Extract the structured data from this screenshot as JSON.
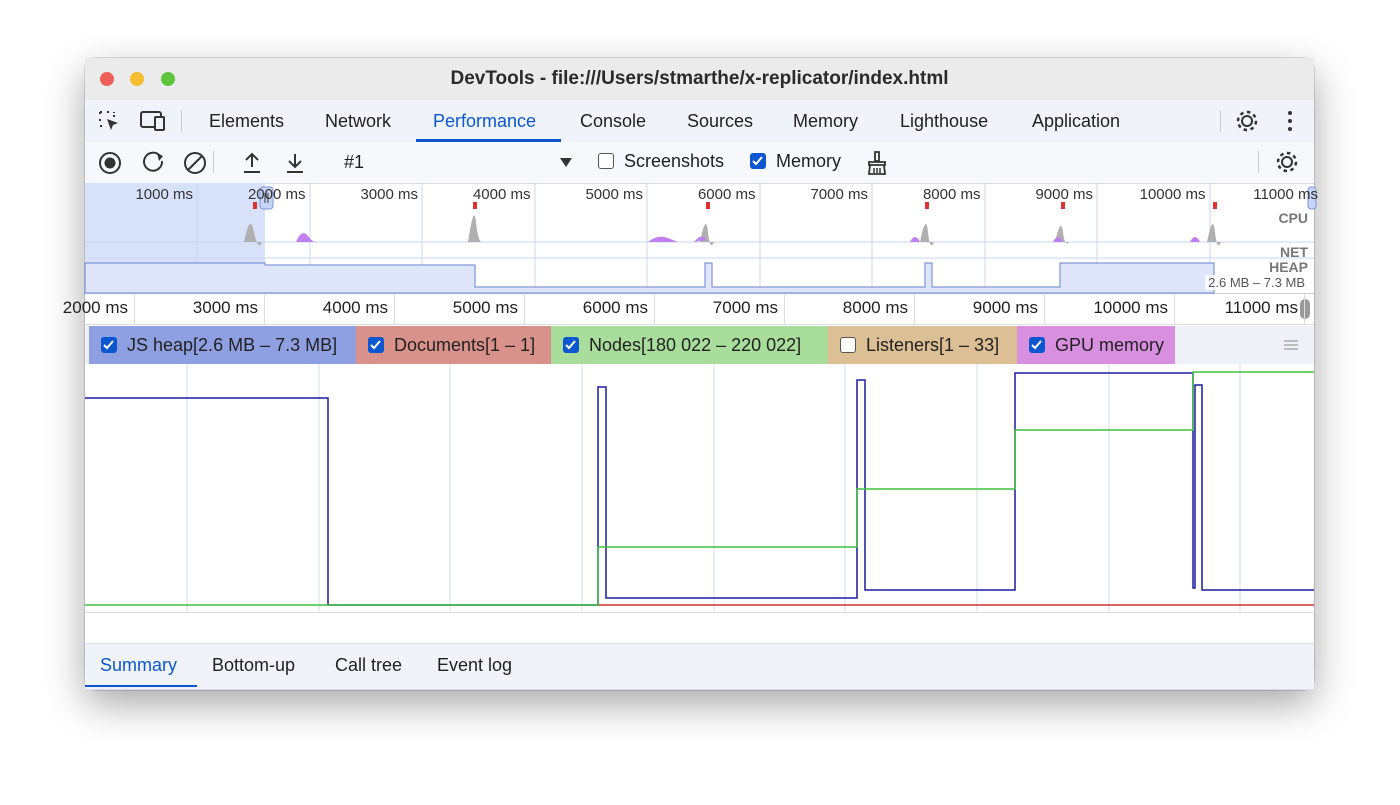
{
  "window": {
    "title": "DevTools - file:///Users/stmarthe/x-replicator/index.html"
  },
  "tabs": {
    "items": [
      "Elements",
      "Network",
      "Performance",
      "Console",
      "Sources",
      "Memory",
      "Lighthouse",
      "Application"
    ],
    "active": 2
  },
  "toolbar": {
    "recording": "#1",
    "checkboxes": [
      {
        "label": "Screenshots",
        "checked": false
      },
      {
        "label": "Memory",
        "checked": true
      }
    ]
  },
  "overview": {
    "ticks": [
      "1000 ms",
      "2000 ms",
      "3000 ms",
      "4000 ms",
      "5000 ms",
      "6000 ms",
      "7000 ms",
      "8000 ms",
      "9000 ms",
      "10000 ms",
      "11000 ms"
    ],
    "tracks": [
      "CPU",
      "NET",
      "HEAP"
    ],
    "heap_range": "2.6 MB – 7.3 MB"
  },
  "ruler": {
    "ticks": [
      "2000 ms",
      "3000 ms",
      "4000 ms",
      "5000 ms",
      "6000 ms",
      "7000 ms",
      "8000 ms",
      "9000 ms",
      "10000 ms",
      "11000 ms"
    ]
  },
  "counters": [
    {
      "label": "JS heap[2.6 MB – 7.3 MB]",
      "checked": true,
      "color": "#8fa0e2"
    },
    {
      "label": "Documents[1 – 1]",
      "checked": true,
      "color": "#d9918b"
    },
    {
      "label": "Nodes[180 022 – 220 022]",
      "checked": true,
      "color": "#a8dd9b"
    },
    {
      "label": "Listeners[1 – 33]",
      "checked": false,
      "color": "#dcbf94"
    },
    {
      "label": "GPU memory",
      "checked": true,
      "color": "#d98fe0"
    }
  ],
  "bottom_tabs": {
    "items": [
      "Summary",
      "Bottom-up",
      "Call tree",
      "Event log"
    ],
    "active": 0
  }
}
